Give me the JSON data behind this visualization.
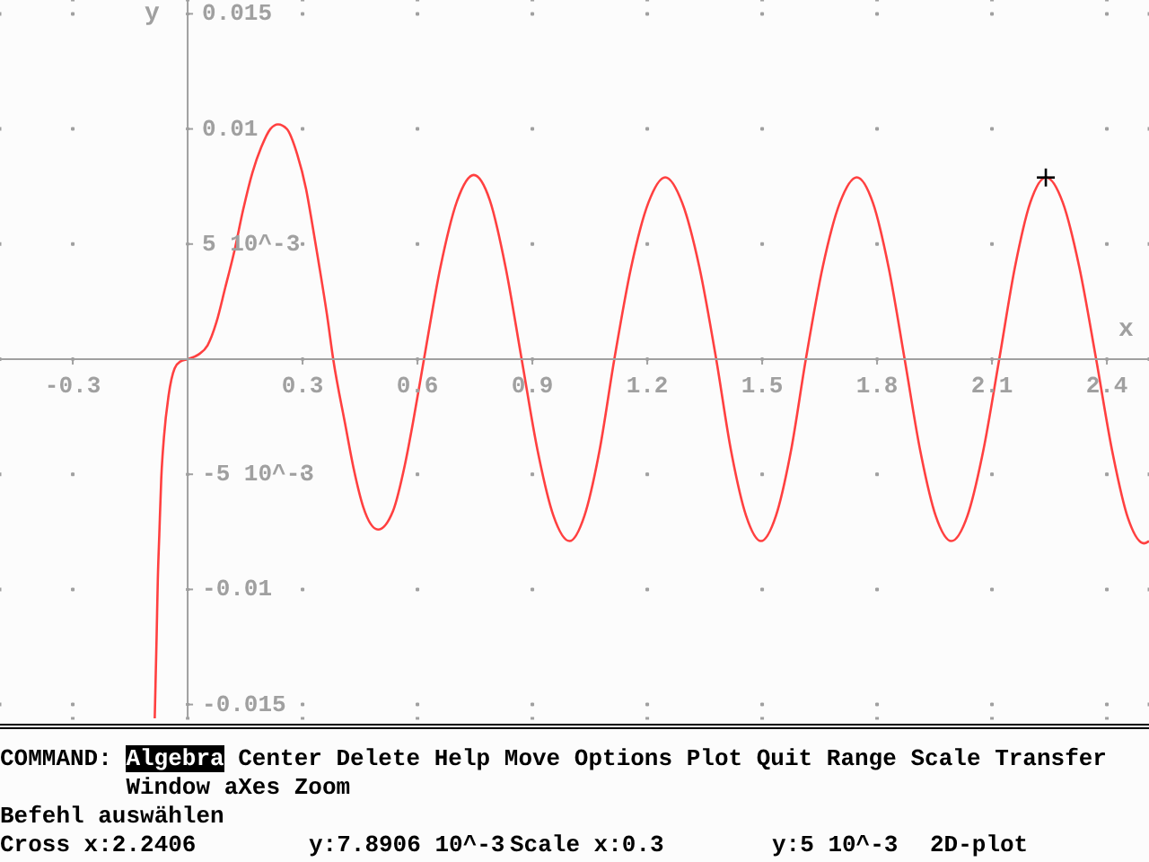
{
  "chart_data": {
    "type": "line",
    "xlabel": "x",
    "ylabel": "y",
    "xlim": [
      -0.49,
      2.51
    ],
    "ylim": [
      -0.0156,
      0.0156
    ],
    "xticks": [
      -0.3,
      0.3,
      0.6,
      0.9,
      1.2,
      1.5,
      1.8,
      2.1,
      2.4
    ],
    "yticks": [
      -0.015,
      -0.01,
      {
        "value": -0.005,
        "label": "-5 10^-3"
      },
      {
        "value": 0.005,
        "label": "5 10^-3"
      },
      0.01,
      0.015
    ],
    "grid": true,
    "series": [
      {
        "color": "#ff4040",
        "marker": "none",
        "x": [
          -0.086,
          -0.081,
          -0.078,
          -0.074,
          -0.069,
          -0.062,
          -0.05,
          -0.034,
          -0.019,
          0,
          0.028,
          0.052,
          0.075,
          0.098,
          0.122,
          0.145,
          0.169,
          0.192,
          0.216,
          0.236,
          0.259,
          0.286,
          0.309,
          0.325,
          0.341,
          0.364,
          0.38,
          0.411,
          0.434,
          0.458,
          0.497,
          0.536,
          0.567,
          0.591,
          0.617,
          0.66,
          0.704,
          0.747,
          0.789,
          0.83,
          0.872,
          0.914,
          0.955,
          0.997,
          1.036,
          1.075,
          1.114,
          1.158,
          1.203,
          1.247,
          1.291,
          1.336,
          1.38,
          1.419,
          1.458,
          1.497,
          1.536,
          1.575,
          1.614,
          1.658,
          1.703,
          1.747,
          1.789,
          1.83,
          1.872,
          1.913,
          1.953,
          1.994,
          2.036,
          2.077,
          2.119,
          2.16,
          2.2,
          2.241,
          2.285,
          2.328,
          2.372,
          2.414,
          2.455,
          2.497,
          2.51
        ],
        "values": [
          -0.0156,
          -0.012,
          -0.0096,
          -0.0076,
          -0.0052,
          -0.0034,
          -0.0016,
          -0.0004,
          -0.0001,
          0,
          0.0002,
          0.0006,
          0.0016,
          0.0031,
          0.0047,
          0.0065,
          0.0081,
          0.0092,
          0.01,
          0.0102,
          0.01,
          0.0089,
          0.0074,
          0.0059,
          0.0043,
          0.0019,
          0,
          -0.0028,
          -0.0048,
          -0.0064,
          -0.0074,
          -0.0066,
          -0.0046,
          -0.0025,
          0,
          0.004,
          0.0069,
          0.008,
          0.0069,
          0.004,
          0,
          -0.004,
          -0.0068,
          -0.0079,
          -0.0068,
          -0.004,
          0,
          0.004,
          0.0068,
          0.0079,
          0.0068,
          0.004,
          0,
          -0.004,
          -0.0068,
          -0.0079,
          -0.0068,
          -0.004,
          0,
          0.004,
          0.0068,
          0.0079,
          0.0068,
          0.004,
          0,
          -0.004,
          -0.0068,
          -0.0079,
          -0.0068,
          -0.004,
          0,
          0.004,
          0.0068,
          0.0079,
          0.0068,
          0.004,
          0,
          -0.004,
          -0.0069,
          -0.008,
          -0.0079
        ]
      },
      {
        "type": "scatter",
        "color": "#000000",
        "marker": "cross",
        "x": [
          2.2406
        ],
        "values": [
          0.0078906
        ]
      }
    ],
    "annotations": [
      "COMMAND:",
      "Algebra Center Delete Help Move Options Plot Quit Range Scale Transfer Window aXes Zoom",
      "Befehl auswählen",
      "Cross x:2.2406",
      "y:7.8906 10^-3",
      "Scale x:0.3",
      "y:5 10^-3",
      "2D-plot"
    ]
  }
}
